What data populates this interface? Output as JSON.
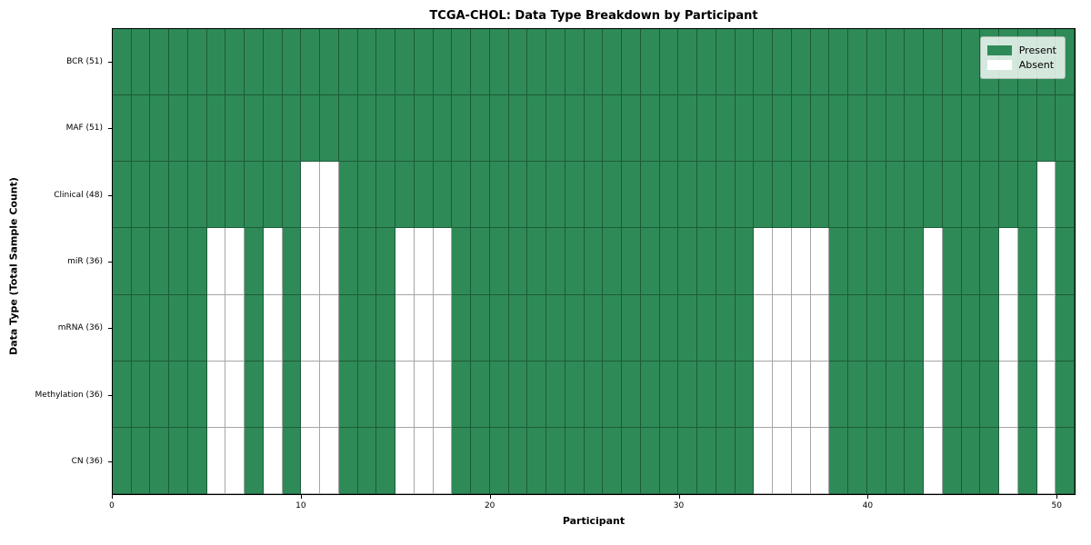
{
  "chart_data": {
    "type": "heatmap",
    "title": "TCGA-CHOL: Data Type Breakdown by Participant",
    "xlabel": "Participant",
    "ylabel": "Data Type (Total Sample Count)",
    "x_axis": {
      "min": 0,
      "max": 51,
      "ticks": [
        0,
        10,
        20,
        30,
        40,
        50
      ]
    },
    "n_participants": 51,
    "rows": [
      {
        "label": "BCR (51)",
        "data_type": "BCR",
        "total": 51,
        "absent_participants": []
      },
      {
        "label": "MAF (51)",
        "data_type": "MAF",
        "total": 51,
        "absent_participants": []
      },
      {
        "label": "Clinical (48)",
        "data_type": "Clinical",
        "total": 48,
        "absent_participants": [
          10,
          11,
          49
        ]
      },
      {
        "label": "miR (36)",
        "data_type": "miR",
        "total": 36,
        "absent_participants": [
          5,
          6,
          8,
          10,
          11,
          15,
          16,
          17,
          34,
          35,
          36,
          37,
          43,
          47,
          49
        ]
      },
      {
        "label": "mRNA (36)",
        "data_type": "mRNA",
        "total": 36,
        "absent_participants": [
          5,
          6,
          8,
          10,
          11,
          15,
          16,
          17,
          34,
          35,
          36,
          37,
          43,
          47,
          49
        ]
      },
      {
        "label": "Methylation (36)",
        "data_type": "Methylation",
        "total": 36,
        "absent_participants": [
          5,
          6,
          8,
          10,
          11,
          15,
          16,
          17,
          34,
          35,
          36,
          37,
          43,
          47,
          49
        ]
      },
      {
        "label": "CN (36)",
        "data_type": "CN",
        "total": 36,
        "absent_participants": [
          5,
          6,
          8,
          10,
          11,
          15,
          16,
          17,
          34,
          35,
          36,
          37,
          43,
          47,
          49
        ]
      }
    ],
    "legend": {
      "position": "upper right",
      "entries": [
        {
          "label": "Present",
          "color": "#2e8b57"
        },
        {
          "label": "Absent",
          "color": "#ffffff"
        }
      ]
    },
    "colors": {
      "present": "#2e8b57",
      "absent": "#ffffff",
      "grid_line": "rgba(0,0,0,0.35)",
      "spine": "#000000",
      "figure_background": "#ffffff"
    }
  }
}
